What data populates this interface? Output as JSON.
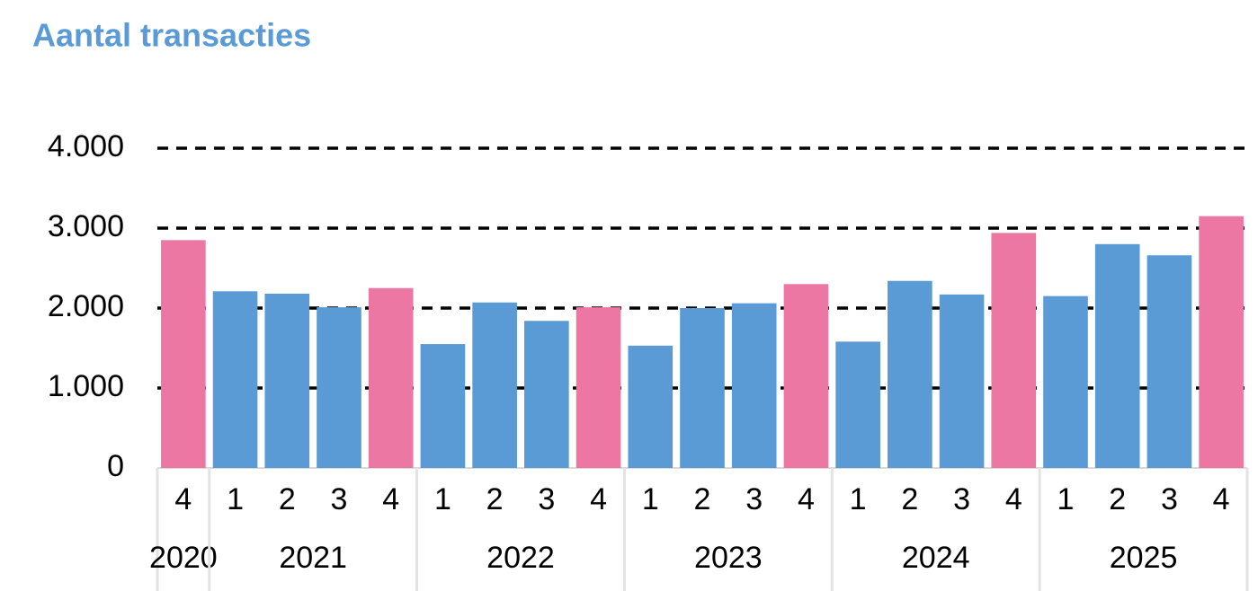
{
  "chart_data": {
    "type": "bar",
    "title": "Aantal transacties",
    "groups": [
      {
        "label": "2020",
        "categories": [
          "4"
        ],
        "values": [
          2850
        ],
        "colors": [
          "#ec77a3"
        ]
      },
      {
        "label": "2021",
        "categories": [
          "1",
          "2",
          "3",
          "4"
        ],
        "values": [
          2210,
          2180,
          2010,
          2250
        ],
        "colors": [
          "#5b9bd5",
          "#5b9bd5",
          "#5b9bd5",
          "#ec77a3"
        ]
      },
      {
        "label": "2022",
        "categories": [
          "1",
          "2",
          "3",
          "4"
        ],
        "values": [
          1550,
          2070,
          1840,
          2010
        ],
        "colors": [
          "#5b9bd5",
          "#5b9bd5",
          "#5b9bd5",
          "#ec77a3"
        ]
      },
      {
        "label": "2023",
        "categories": [
          "1",
          "2",
          "3",
          "4"
        ],
        "values": [
          1530,
          2000,
          2060,
          2300
        ],
        "colors": [
          "#5b9bd5",
          "#5b9bd5",
          "#5b9bd5",
          "#ec77a3"
        ]
      },
      {
        "label": "2024",
        "categories": [
          "1",
          "2",
          "3",
          "4"
        ],
        "values": [
          1580,
          2340,
          2170,
          2940
        ],
        "colors": [
          "#5b9bd5",
          "#5b9bd5",
          "#5b9bd5",
          "#ec77a3"
        ]
      },
      {
        "label": "2025",
        "categories": [
          "1",
          "2",
          "3",
          "4"
        ],
        "values": [
          2150,
          2800,
          2660,
          3150
        ],
        "colors": [
          "#5b9bd5",
          "#5b9bd5",
          "#5b9bd5",
          "#ec77a3"
        ]
      }
    ],
    "ylim": [
      0,
      4000
    ],
    "yticks": [
      0,
      {
        "value": 1000,
        "label": "1.000"
      },
      {
        "value": 2000,
        "label": "2.000"
      },
      {
        "value": 3000,
        "label": "3.000"
      },
      {
        "value": 4000,
        "label": "4.000"
      }
    ],
    "grid": true
  }
}
